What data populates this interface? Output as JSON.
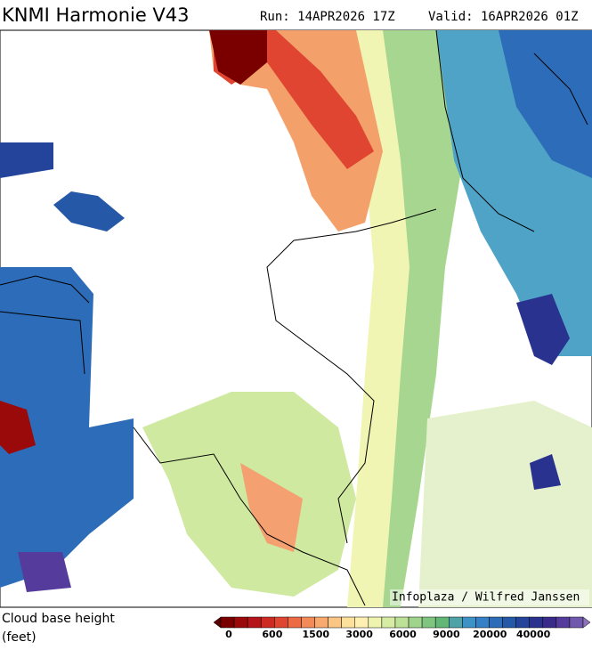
{
  "header": {
    "title": "KNMI Harmonie V43",
    "run": "Run: 14APR2026 17Z",
    "valid": "Valid: 16APR2026 01Z"
  },
  "credit": "Infoplaza / Wilfred Janssen",
  "legend": {
    "title": "Cloud base height",
    "unit": "(feet)",
    "ticks": [
      0,
      600,
      1500,
      3000,
      6000,
      9000,
      20000,
      40000
    ],
    "colors": [
      "#5a0000",
      "#7a0000",
      "#9a0a0a",
      "#b5141a",
      "#cc2a22",
      "#df4530",
      "#ec6a44",
      "#f48a58",
      "#f8a96e",
      "#fbc684",
      "#fde09c",
      "#fdf0b2",
      "#eef4b0",
      "#d6eca2",
      "#bde196",
      "#a0d48c",
      "#80c57f",
      "#62b676",
      "#4fa3a6",
      "#3f92c6",
      "#3580c6",
      "#2d6cb8",
      "#2658a8",
      "#23449a",
      "#2a3290",
      "#3a2a8a",
      "#553c9c",
      "#7058ac",
      "#8c72ba"
    ]
  }
}
